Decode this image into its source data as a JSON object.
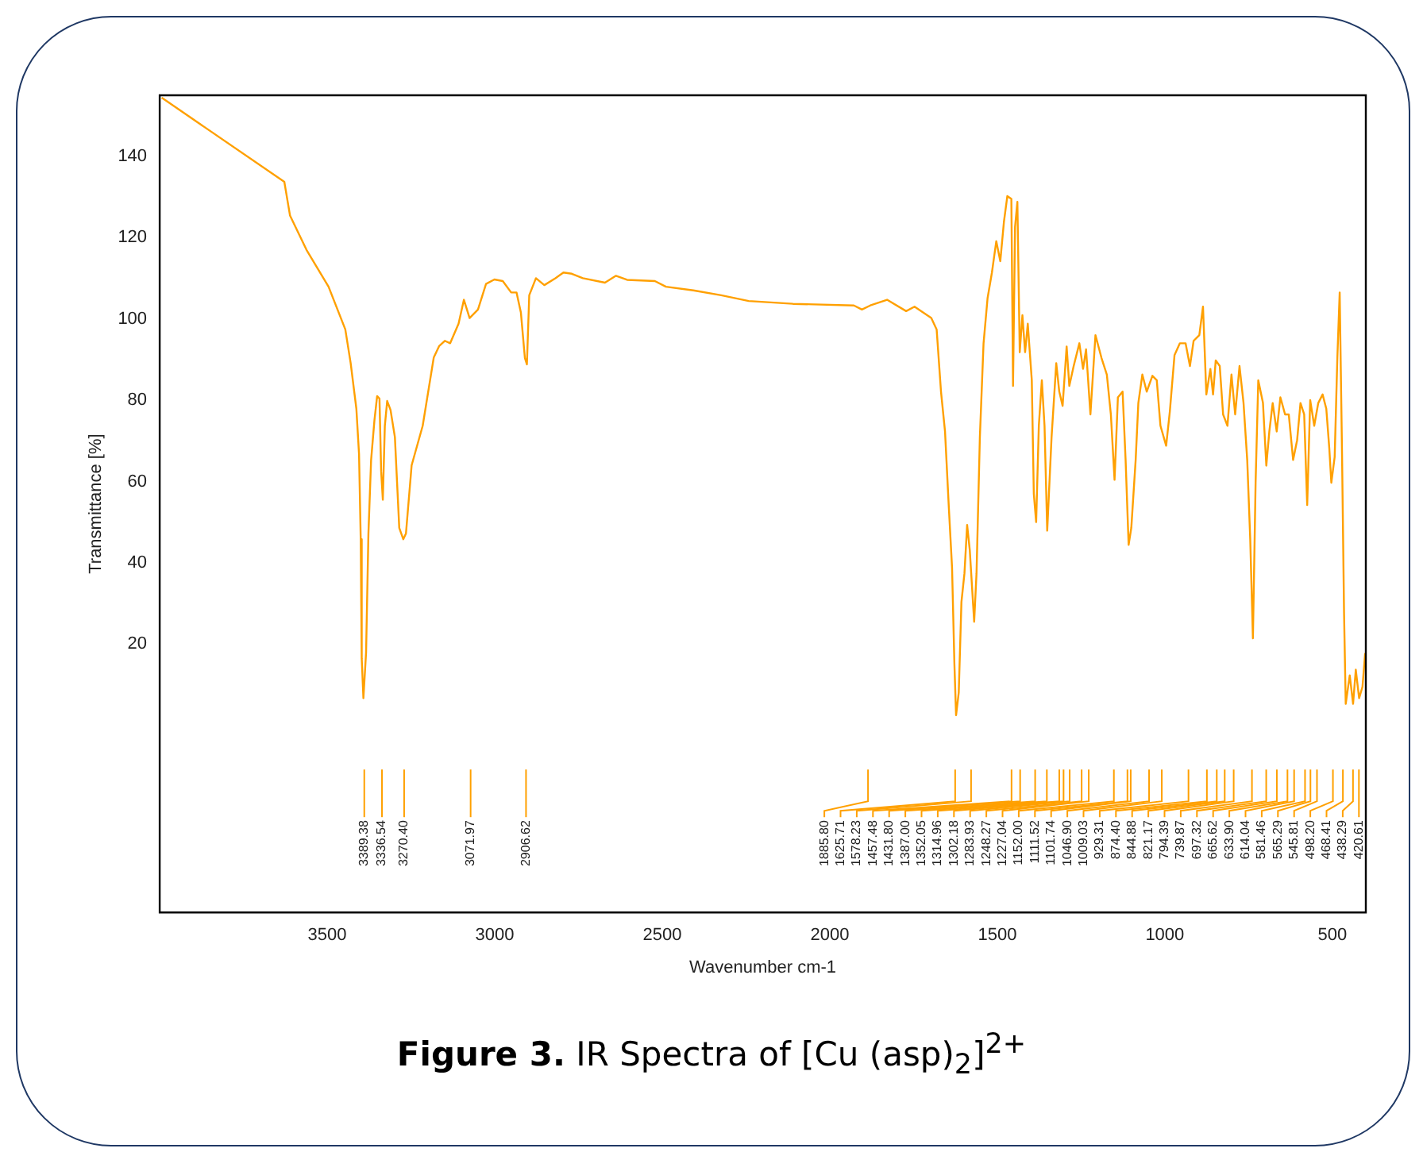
{
  "chart_data": {
    "type": "line",
    "title": "Figure 3. IR Spectra of [Cu (asp)$_{2}$]$^{2+}$",
    "xlabel": "Wavenumber cm-1",
    "ylabel": "Transmittance [%]",
    "xlim": [
      4000,
      400
    ],
    "xticks": [
      3500,
      3000,
      2500,
      2000,
      1500,
      1000,
      500
    ],
    "ylim": [
      -46,
      155
    ],
    "yticks": [
      20,
      40,
      60,
      80,
      100,
      120,
      140
    ],
    "grid": false,
    "legend": false,
    "marker": "none",
    "line_style": "solid",
    "series": [
      {
        "color": "#ffa000",
        "x": [
          3994,
          3628,
          3611,
          3562,
          3496,
          3446,
          3430,
          3413,
          3405,
          3400,
          3397,
          3392,
          3384,
          3377,
          3369,
          3359,
          3351,
          3344,
          3339,
          3334,
          3328,
          3321,
          3311,
          3298,
          3285,
          3273,
          3265,
          3248,
          3215,
          3182,
          3166,
          3149,
          3133,
          3108,
          3092,
          3075,
          3050,
          3026,
          3001,
          2976,
          2951,
          2935,
          2922,
          2910,
          2904,
          2897,
          2877,
          2852,
          2819,
          2795,
          2770,
          2737,
          2671,
          2638,
          2605,
          2522,
          2489,
          2407,
          2324,
          2242,
          2110,
          1928,
          1904,
          1879,
          1829,
          1772,
          1747,
          1697,
          1681,
          1668,
          1656,
          1645,
          1635,
          1628,
          1623,
          1615,
          1607,
          1598,
          1590,
          1582,
          1569,
          1562,
          1552,
          1541,
          1529,
          1516,
          1503,
          1491,
          1480,
          1470,
          1458,
          1453,
          1447,
          1440,
          1433,
          1425,
          1417,
          1409,
          1397,
          1391,
          1384,
          1376,
          1367,
          1359,
          1351,
          1338,
          1324,
          1315,
          1305,
          1293,
          1285,
          1272,
          1255,
          1244,
          1235,
          1222,
          1207,
          1189,
          1173,
          1161,
          1150,
          1140,
          1126,
          1117,
          1108,
          1100,
          1087,
          1079,
          1067,
          1054,
          1037,
          1024,
          1013,
          996,
          985,
          971,
          955,
          938,
          925,
          914,
          897,
          886,
          876,
          864,
          856,
          848,
          836,
          826,
          813,
          801,
          790,
          777,
          765,
          754,
          745,
          737,
          729,
          721,
          707,
          697,
          688,
          678,
          666,
          655,
          641,
          630,
          617,
          605,
          595,
          584,
          575,
          566,
          554,
          542,
          529,
          518,
          509,
          503,
          493,
          485,
          478,
          471,
          465,
          460,
          448,
          438,
          430,
          420,
          410,
          402
        ],
        "values": [
          154.4,
          133.7,
          125.4,
          117.0,
          107.9,
          97.4,
          89.1,
          77.9,
          66.7,
          45.8,
          16.5,
          6.7,
          17.9,
          47.2,
          65.3,
          75.1,
          81.0,
          80.4,
          62.5,
          55.5,
          73.7,
          79.8,
          77.6,
          70.9,
          48.6,
          45.8,
          47.2,
          64.0,
          73.7,
          90.5,
          93.3,
          94.6,
          94.0,
          98.8,
          104.7,
          100.2,
          102.3,
          108.6,
          109.7,
          109.3,
          106.5,
          106.5,
          101.6,
          90.4,
          88.8,
          105.8,
          110.0,
          108.3,
          110.0,
          111.4,
          111.1,
          110.0,
          108.9,
          110.6,
          109.6,
          109.3,
          107.9,
          107.0,
          105.8,
          104.4,
          103.7,
          103.3,
          102.3,
          103.3,
          104.7,
          101.9,
          103.0,
          100.2,
          97.4,
          82.1,
          72.3,
          54.2,
          38.8,
          15.1,
          2.5,
          8.1,
          30.4,
          37.4,
          49.3,
          43.0,
          25.5,
          37.4,
          70.9,
          94.0,
          105.1,
          111.4,
          119.1,
          114.2,
          124.0,
          130.2,
          129.5,
          83.5,
          122.6,
          128.8,
          91.8,
          100.9,
          91.8,
          98.8,
          84.9,
          57.0,
          50.0,
          73.7,
          84.9,
          73.7,
          47.9,
          70.9,
          89.1,
          82.1,
          78.6,
          93.2,
          83.5,
          88.4,
          94.0,
          87.7,
          92.5,
          76.5,
          96.0,
          90.4,
          86.3,
          76.5,
          60.4,
          80.7,
          82.1,
          65.3,
          44.4,
          48.6,
          65.3,
          79.3,
          86.3,
          82.1,
          86.0,
          84.9,
          73.7,
          68.8,
          77.2,
          91.1,
          94.0,
          94.0,
          88.4,
          94.6,
          96.0,
          103.0,
          81.4,
          87.7,
          81.4,
          89.8,
          88.4,
          76.5,
          73.7,
          86.3,
          76.5,
          88.4,
          79.3,
          65.3,
          45.8,
          21.4,
          59.7,
          84.9,
          79.3,
          63.9,
          72.3,
          79.3,
          72.3,
          80.7,
          76.5,
          76.5,
          65.3,
          70.2,
          79.3,
          76.5,
          54.2,
          80.0,
          73.7,
          79.3,
          81.4,
          77.9,
          68.1,
          59.7,
          66.0,
          90.4,
          106.5,
          66.7,
          27.6,
          5.3,
          12.3,
          5.3,
          13.7,
          6.7,
          9.5,
          17.8
        ]
      }
    ],
    "annotations": [
      {
        "text": "3389.38",
        "x": 3389.38
      },
      {
        "text": "3336.54",
        "x": 3336.54
      },
      {
        "text": "3270.40",
        "x": 3270.4
      },
      {
        "text": "3071.97",
        "x": 3071.97
      },
      {
        "text": "2906.62",
        "x": 2906.62
      },
      {
        "text": "1885.80",
        "x": 1885.8
      },
      {
        "text": "1625.71",
        "x": 1625.71
      },
      {
        "text": "1578.23",
        "x": 1578.23
      },
      {
        "text": "1457.48",
        "x": 1457.48
      },
      {
        "text": "1431.80",
        "x": 1431.8
      },
      {
        "text": "1387.00",
        "x": 1387.0
      },
      {
        "text": "1352.05",
        "x": 1352.05
      },
      {
        "text": "1314.96",
        "x": 1314.96
      },
      {
        "text": "1302.18",
        "x": 1302.18
      },
      {
        "text": "1283.93",
        "x": 1283.93
      },
      {
        "text": "1248.27",
        "x": 1248.27
      },
      {
        "text": "1227.04",
        "x": 1227.04
      },
      {
        "text": "1152.00",
        "x": 1152.0
      },
      {
        "text": "1111.52",
        "x": 1111.52
      },
      {
        "text": "1101.74",
        "x": 1101.74
      },
      {
        "text": "1046.90",
        "x": 1046.9
      },
      {
        "text": "1009.03",
        "x": 1009.03
      },
      {
        "text": "929.31",
        "x": 929.31
      },
      {
        "text": "874.40",
        "x": 874.4
      },
      {
        "text": "844.88",
        "x": 844.88
      },
      {
        "text": "821.17",
        "x": 821.17
      },
      {
        "text": "794.39",
        "x": 794.39
      },
      {
        "text": "739.87",
        "x": 739.87
      },
      {
        "text": "697.32",
        "x": 697.32
      },
      {
        "text": "665.62",
        "x": 665.62
      },
      {
        "text": "633.90",
        "x": 633.9
      },
      {
        "text": "614.04",
        "x": 614.04
      },
      {
        "text": "581.46",
        "x": 581.46
      },
      {
        "text": "565.29",
        "x": 565.29
      },
      {
        "text": "545.81",
        "x": 545.81
      },
      {
        "text": "498.20",
        "x": 498.2
      },
      {
        "text": "468.41",
        "x": 468.41
      },
      {
        "text": "438.29",
        "x": 438.29
      },
      {
        "text": "420.61",
        "x": 420.61
      }
    ]
  }
}
